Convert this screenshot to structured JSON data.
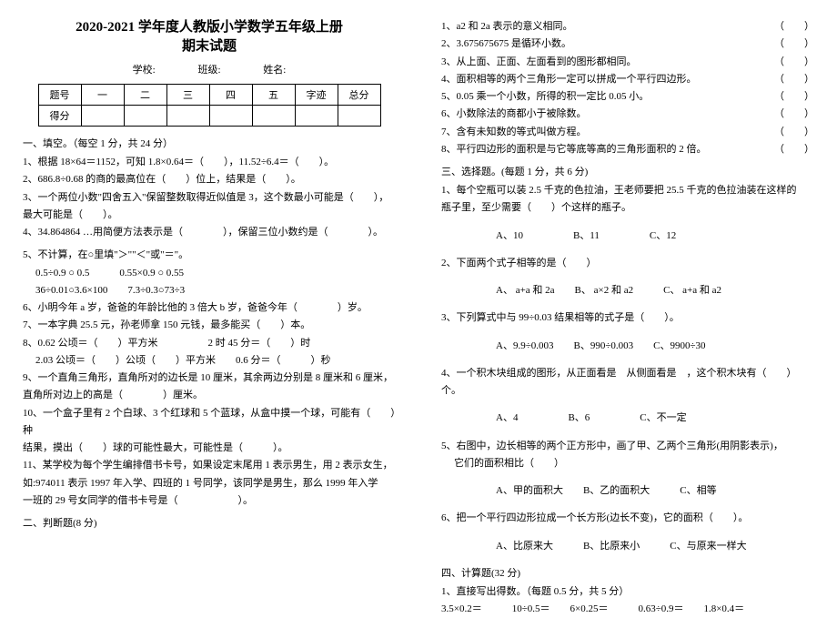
{
  "title_line1": "2020-2021 学年度人教版小学数学五年级上册",
  "title_line2": "期末试题",
  "meta": {
    "school": "学校:",
    "class": "班级:",
    "name": "姓名:"
  },
  "table": {
    "head": [
      "题号",
      "一",
      "二",
      "三",
      "四",
      "五",
      "字迹",
      "总分"
    ],
    "row": "得分"
  },
  "sec1": "一、填空。（每空 1 分，共 24 分）",
  "q1": "1、根据 18×64＝1152，可知 1.8×0.64＝（　　），11.52÷6.4＝（　　）。",
  "q2": "2、686.8÷0.68 的商的最高位在（　　）位上，结果是（　　）。",
  "q3a": "3、一个两位小数\"四舍五入\"保留整数取得近似值是 3，这个数最小可能是（　　），",
  "q3b": "最大可能是（　　）。",
  "q4": "4、34.864864 …用简便方法表示是（　　　　），保留三位小数约是（　　　　）。",
  "q5": "5、不计算，在○里填\"＞\"\"＜\"或\"＝\"。",
  "q5a": "0.5÷0.9 ○ 0.5　　　0.55×0.9 ○ 0.55",
  "q5b": "36÷0.01○3.6×100　　7.3÷0.3○73÷3",
  "q6": "6、小明今年 a 岁，爸爸的年龄比他的 3 倍大 b 岁，爸爸今年（　　　　）岁。",
  "q7": "7、一本字典 25.5 元，孙老师拿 150 元钱，最多能买（　　）本。",
  "q8a": "8、0.62 公顷＝（　　）平方米　　　　　2 时 45 分＝（　　）时",
  "q8b": "2.03 公顷＝（　　）公顷（　　）平方米　　0.6 分＝（　　　）秒",
  "q9a": "9、一个直角三角形，直角所对的边长是 10 厘米，其余两边分别是 8 厘米和 6 厘米，",
  "q9b": "直角所对边上的高是（　　　　）厘米。",
  "q10a": "10、一个盒子里有 2 个白球、3 个红球和 5 个蓝球，从盒中摸一个球，可能有（　　）种",
  "q10b": "结果，摸出（　　）球的可能性最大，可能性是（　　　）。",
  "q11a": "11、某学校为每个学生编排借书卡号，如果设定末尾用 1 表示男生，用 2 表示女生，",
  "q11b": "如:974011 表示 1997 年入学、四班的 1 号同学，该同学是男生，那么 1999 年入学",
  "q11c": "一班的 29 号女同学的借书卡号是（　　　　　　）。",
  "sec2": "二、判断题(8 分)",
  "r_paren": "（　　）",
  "j1": "1、a2 和 2a 表示的意义相同。",
  "j2": "2、3.675675675 是循环小数。",
  "j3": "3、从上面、正面、左面看到的图形都相同。",
  "j4": "4、面积相等的两个三角形一定可以拼成一个平行四边形。",
  "j5": "5、0.05 乘一个小数，所得的积一定比 0.05 小。",
  "j6": "6、小数除法的商都小于被除数。",
  "j7": "7、含有未知数的等式叫做方程。",
  "j8": "8、平行四边形的面积是与它等底等高的三角形面积的 2 倍。",
  "sec3": "三、选择题。(每题 1 分，共 6 分)",
  "c1a": "1、每个空瓶可以装 2.5 千克的色拉油，王老师要把 25.5 千克的色拉油装在这样的",
  "c1b": "瓶子里，至少需要（　　）个这样的瓶子。",
  "c1o": "A、10　　　　　B、11　　　　　C、12",
  "c2": "2、下面两个式子相等的是（　　）",
  "c2o": "A、 a+a 和 2a　　B、 a×2 和 a2　　　C、 a+a 和 a2",
  "c3": "3、下列算式中与 99÷0.03 结果相等的式子是（　　）。",
  "c3o": "A、9.9÷0.003　　B、990÷0.003　　C、9900÷30",
  "c4": "4、一个积木块组成的图形，从正面看是　从侧面看是　，这个积木块有（　　）个。",
  "c4o": "A、4　　　　　B、6　　　　　C、不一定",
  "c5a": "5、右图中，边长相等的两个正方形中，画了甲、乙两个三角形(用阴影表示)，",
  "c5b": "它们的面积相比（　　）",
  "c5o": "A、甲的面积大　　B、乙的面积大　　　C、相等",
  "c6": "6、把一个平行四边形拉成一个长方形(边长不变)，它的面积（　　）。",
  "c6o": "A、比原来大　　　B、比原来小　　　C、与原来一样大",
  "sec4": "四、计算题(32 分)",
  "s4a": "1、直接写出得数。（每题 0.5 分，共 5 分）",
  "s4b": "3.5×0.2＝　　　10÷0.5＝　　6×0.25＝　　　0.63÷0.9＝　　1.8×0.4＝"
}
